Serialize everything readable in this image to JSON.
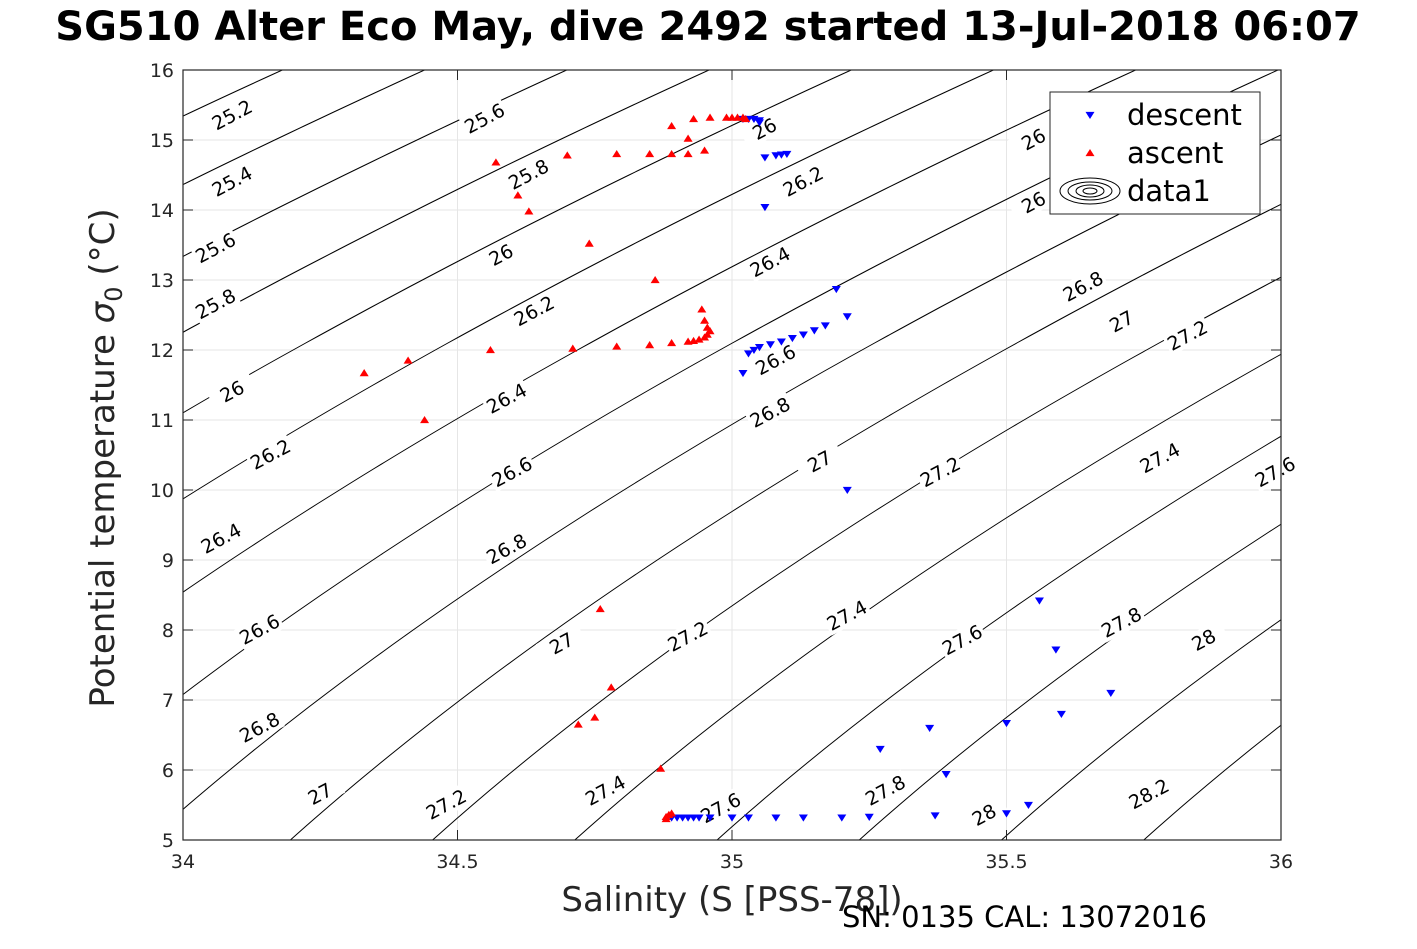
{
  "chart_data": {
    "type": "scatter",
    "title": "SG510 Alter Eco May, dive 2492 started 13-Jul-2018 06:07",
    "xlabel": "Salinity (S [PSS-78])",
    "ylabel_main": "Potential temperature ",
    "ylabel_sym": "σ",
    "ylabel_sub": "0",
    "ylabel_unit": " (°C)",
    "footer": "SN: 0135  CAL: 13072016",
    "xlim": [
      34,
      36
    ],
    "ylim": [
      5,
      16
    ],
    "xticks": [
      "34",
      "34.5",
      "35",
      "35.5",
      "36"
    ],
    "yticks": [
      "5",
      "6",
      "7",
      "8",
      "9",
      "10",
      "11",
      "12",
      "13",
      "14",
      "15",
      "16"
    ],
    "grid": true,
    "legend_placement": "top-right",
    "legend": [
      {
        "label": "descent",
        "marker": "triangle-down",
        "color": "#0000ff"
      },
      {
        "label": "ascent",
        "marker": "triangle-up",
        "color": "#ff0000"
      },
      {
        "label": "data1",
        "marker": "contour",
        "color": "#000000"
      }
    ],
    "contour_levels": [
      "25.2",
      "25.4",
      "25.6",
      "25.8",
      "26",
      "26.2",
      "26.4",
      "26.6",
      "26.8",
      "27",
      "27.2",
      "27.4",
      "27.6",
      "27.8",
      "28",
      "28.2"
    ],
    "contour_label_items": [
      {
        "label": "25.2",
        "s": 34.09,
        "t": 15.35
      },
      {
        "label": "25.4",
        "s": 34.09,
        "t": 14.4
      },
      {
        "label": "25.6",
        "s": 34.55,
        "t": 15.3
      },
      {
        "label": "25.6",
        "s": 34.06,
        "t": 13.45
      },
      {
        "label": "25.8",
        "s": 34.63,
        "t": 14.5
      },
      {
        "label": "25.8",
        "s": 34.06,
        "t": 12.65
      },
      {
        "label": "26",
        "s": 35.06,
        "t": 15.15
      },
      {
        "label": "26",
        "s": 34.58,
        "t": 13.35
      },
      {
        "label": "26",
        "s": 34.09,
        "t": 11.4
      },
      {
        "label": "26",
        "s": 35.55,
        "t": 15.0
      },
      {
        "label": "26",
        "s": 35.55,
        "t": 14.1
      },
      {
        "label": "26.2",
        "s": 35.13,
        "t": 14.4
      },
      {
        "label": "26.2",
        "s": 34.64,
        "t": 12.55
      },
      {
        "label": "26.2",
        "s": 34.16,
        "t": 10.5
      },
      {
        "label": "26.4",
        "s": 35.07,
        "t": 13.25
      },
      {
        "label": "26.4",
        "s": 34.59,
        "t": 11.3
      },
      {
        "label": "26.4",
        "s": 34.07,
        "t": 9.3
      },
      {
        "label": "26.6",
        "s": 35.08,
        "t": 11.85
      },
      {
        "label": "26.6",
        "s": 34.6,
        "t": 10.25
      },
      {
        "label": "26.6",
        "s": 34.14,
        "t": 8.0
      },
      {
        "label": "26.8",
        "s": 35.64,
        "t": 12.9
      },
      {
        "label": "26.8",
        "s": 35.07,
        "t": 11.1
      },
      {
        "label": "26.8",
        "s": 34.59,
        "t": 9.15
      },
      {
        "label": "26.8",
        "s": 34.14,
        "t": 6.6
      },
      {
        "label": "27",
        "s": 35.71,
        "t": 12.4
      },
      {
        "label": "27",
        "s": 35.16,
        "t": 10.4
      },
      {
        "label": "27",
        "s": 34.69,
        "t": 7.8
      },
      {
        "label": "27",
        "s": 34.25,
        "t": 5.65
      },
      {
        "label": "27.2",
        "s": 35.83,
        "t": 12.2
      },
      {
        "label": "27.2",
        "s": 35.38,
        "t": 10.25
      },
      {
        "label": "27.2",
        "s": 34.92,
        "t": 7.9
      },
      {
        "label": "27.2",
        "s": 34.48,
        "t": 5.5
      },
      {
        "label": "27.4",
        "s": 35.78,
        "t": 10.45
      },
      {
        "label": "27.4",
        "s": 35.21,
        "t": 8.2
      },
      {
        "label": "27.4",
        "s": 34.77,
        "t": 5.7
      },
      {
        "label": "27.6",
        "s": 35.99,
        "t": 10.25
      },
      {
        "label": "27.6",
        "s": 35.42,
        "t": 7.85
      },
      {
        "label": "27.6",
        "s": 34.98,
        "t": 5.45
      },
      {
        "label": "27.8",
        "s": 35.71,
        "t": 8.1
      },
      {
        "label": "27.8",
        "s": 35.28,
        "t": 5.7
      },
      {
        "label": "28",
        "s": 35.86,
        "t": 7.85
      },
      {
        "label": "28",
        "s": 35.46,
        "t": 5.35
      },
      {
        "label": "28.2",
        "s": 35.76,
        "t": 5.65
      }
    ],
    "series": [
      {
        "name": "descent",
        "marker": "triangle-down",
        "color": "#0000ff",
        "points": [
          [
            35.02,
            15.3
          ],
          [
            35.03,
            15.3
          ],
          [
            35.04,
            15.3
          ],
          [
            35.05,
            15.28
          ],
          [
            35.05,
            15.25
          ],
          [
            35.06,
            14.75
          ],
          [
            35.08,
            14.78
          ],
          [
            35.09,
            14.79
          ],
          [
            35.1,
            14.8
          ],
          [
            35.06,
            14.04
          ],
          [
            35.19,
            12.87
          ],
          [
            35.21,
            12.48
          ],
          [
            35.17,
            12.35
          ],
          [
            35.15,
            12.28
          ],
          [
            35.13,
            12.22
          ],
          [
            35.11,
            12.17
          ],
          [
            35.09,
            12.12
          ],
          [
            35.07,
            12.08
          ],
          [
            35.05,
            12.04
          ],
          [
            35.04,
            12.0
          ],
          [
            35.03,
            11.95
          ],
          [
            35.02,
            11.67
          ],
          [
            35.21,
            10.0
          ],
          [
            35.56,
            8.42
          ],
          [
            35.59,
            7.72
          ],
          [
            35.6,
            6.8
          ],
          [
            35.69,
            7.1
          ],
          [
            35.5,
            6.67
          ],
          [
            35.36,
            6.6
          ],
          [
            35.27,
            6.3
          ],
          [
            35.39,
            5.94
          ],
          [
            35.54,
            5.5
          ],
          [
            35.5,
            5.38
          ],
          [
            35.37,
            5.35
          ],
          [
            35.25,
            5.33
          ],
          [
            35.2,
            5.32
          ],
          [
            35.13,
            5.32
          ],
          [
            35.08,
            5.32
          ],
          [
            35.03,
            5.32
          ],
          [
            35.0,
            5.32
          ],
          [
            34.96,
            5.32
          ],
          [
            34.94,
            5.32
          ],
          [
            34.93,
            5.32
          ],
          [
            34.92,
            5.32
          ],
          [
            34.91,
            5.32
          ],
          [
            34.9,
            5.32
          ],
          [
            34.89,
            5.32
          ]
        ]
      },
      {
        "name": "ascent",
        "marker": "triangle-up",
        "color": "#ff0000",
        "points": [
          [
            34.88,
            5.33
          ],
          [
            34.885,
            5.36
          ],
          [
            34.89,
            5.38
          ],
          [
            34.88,
            5.3
          ],
          [
            34.87,
            6.02
          ],
          [
            34.78,
            7.18
          ],
          [
            34.76,
            8.3
          ],
          [
            34.75,
            6.75
          ],
          [
            34.72,
            6.65
          ],
          [
            34.33,
            11.67
          ],
          [
            34.41,
            11.85
          ],
          [
            34.44,
            11.0
          ],
          [
            34.56,
            12.0
          ],
          [
            34.71,
            12.02
          ],
          [
            34.79,
            12.05
          ],
          [
            34.85,
            12.07
          ],
          [
            34.89,
            12.1
          ],
          [
            34.92,
            12.12
          ],
          [
            34.93,
            12.13
          ],
          [
            34.94,
            12.15
          ],
          [
            34.95,
            12.18
          ],
          [
            34.955,
            12.22
          ],
          [
            34.96,
            12.27
          ],
          [
            34.955,
            12.32
          ],
          [
            34.95,
            12.42
          ],
          [
            34.945,
            12.58
          ],
          [
            34.86,
            13.0
          ],
          [
            34.74,
            13.52
          ],
          [
            34.63,
            13.98
          ],
          [
            34.61,
            14.21
          ],
          [
            34.57,
            14.68
          ],
          [
            34.7,
            14.78
          ],
          [
            34.79,
            14.8
          ],
          [
            34.85,
            14.8
          ],
          [
            34.89,
            14.8
          ],
          [
            34.92,
            14.8
          ],
          [
            34.95,
            14.85
          ],
          [
            34.92,
            15.02
          ],
          [
            34.89,
            15.2
          ],
          [
            34.93,
            15.3
          ],
          [
            34.96,
            15.32
          ],
          [
            34.99,
            15.32
          ],
          [
            35.0,
            15.32
          ],
          [
            35.01,
            15.32
          ],
          [
            35.02,
            15.32
          ],
          [
            35.025,
            15.3
          ]
        ]
      }
    ]
  }
}
